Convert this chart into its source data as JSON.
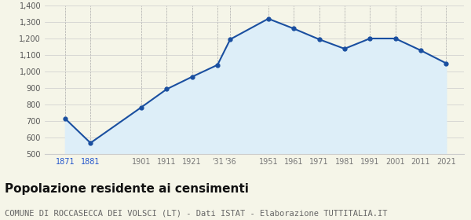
{
  "years": [
    1871,
    1881,
    1901,
    1911,
    1921,
    1931,
    1936,
    1951,
    1961,
    1971,
    1981,
    1991,
    2001,
    2011,
    2021
  ],
  "population": [
    715,
    567,
    783,
    893,
    968,
    1040,
    1195,
    1320,
    1260,
    1195,
    1138,
    1200,
    1200,
    1128,
    1050
  ],
  "x_labels": [
    "1871",
    "1881",
    "1901",
    "1911",
    "1921",
    "'31",
    "'36",
    "1951",
    "1961",
    "1971",
    "1981",
    "1991",
    "2001",
    "2011",
    "2021"
  ],
  "x_label_colors": [
    "#2255cc",
    "#2255cc",
    "#777777",
    "#777777",
    "#777777",
    "#777777",
    "#777777",
    "#777777",
    "#777777",
    "#777777",
    "#777777",
    "#777777",
    "#777777",
    "#777777",
    "#777777"
  ],
  "line_color": "#1a4fa0",
  "fill_color": "#ddeef8",
  "marker_color": "#1a4fa0",
  "background_color": "#f5f5e8",
  "grid_color_h": "#cccccc",
  "grid_color_v": "#aaaaaa",
  "ylim": [
    500,
    1400
  ],
  "yticks": [
    500,
    600,
    700,
    800,
    900,
    1000,
    1100,
    1200,
    1300,
    1400
  ],
  "ytick_labels": [
    "500",
    "600",
    "700",
    "800",
    "900",
    "1,000",
    "1,100",
    "1,200",
    "1,300",
    "1,400"
  ],
  "title": "Popolazione residente ai censimenti",
  "subtitle": "COMUNE DI ROCCASECCA DEI VOLSCI (LT) - Dati ISTAT - Elaborazione TUTTITALIA.IT",
  "title_fontsize": 11,
  "subtitle_fontsize": 7.5
}
